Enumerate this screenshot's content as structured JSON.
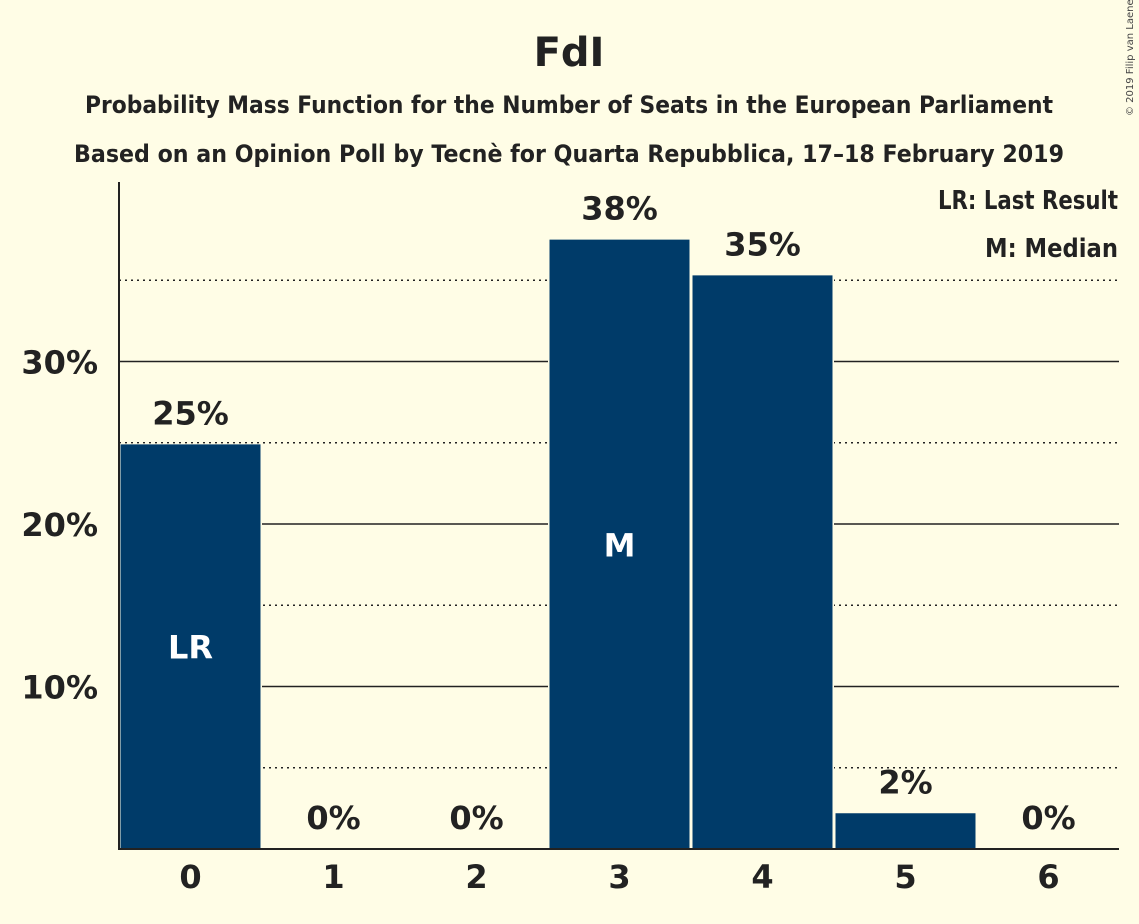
{
  "chart_data": {
    "type": "bar",
    "title": "FdI",
    "subtitle_lines": [
      "Probability Mass Function for the Number of Seats in the European Parliament",
      "Based on an Opinion Poll by Tecnè for Quarta Repubblica, 17–18 February 2019"
    ],
    "copyright": "© 2019 Filip van Laenen",
    "categories": [
      "0",
      "1",
      "2",
      "3",
      "4",
      "5",
      "6"
    ],
    "values": [
      24.9,
      0,
      0,
      37.5,
      35.3,
      2.2,
      0
    ],
    "value_labels": [
      "25%",
      "0%",
      "0%",
      "38%",
      "35%",
      "2%",
      "0%"
    ],
    "bar_markers": {
      "0": "LR",
      "3": "M"
    },
    "yticks": [
      {
        "value": 10,
        "label": "10%"
      },
      {
        "value": 20,
        "label": "20%"
      },
      {
        "value": 30,
        "label": "30%"
      }
    ],
    "minor_gridlines": [
      5,
      15,
      25,
      35
    ],
    "ylim": [
      0,
      41
    ],
    "legend": {
      "position": "top-right",
      "entries": [
        "LR: Last Result",
        "M: Median"
      ]
    },
    "colors": {
      "bar": "#003B69",
      "background": "#FFFDE6",
      "text": "#222222",
      "marker_text": "#FFFFFF"
    }
  }
}
